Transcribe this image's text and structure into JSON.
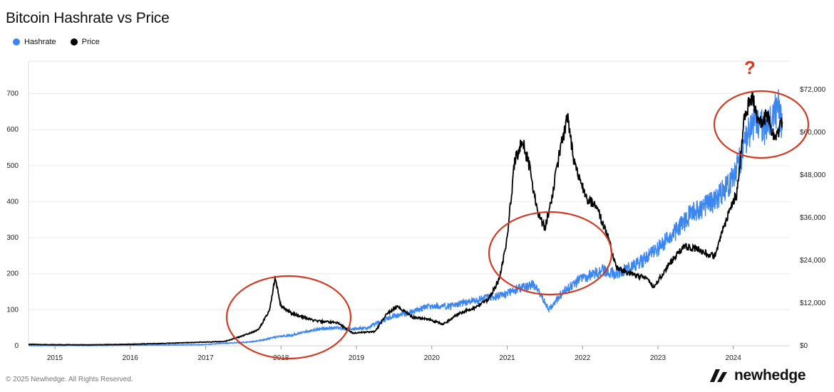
{
  "title": "Bitcoin Hashrate vs Price",
  "legend": [
    {
      "label": "Hashrate",
      "color": "#3b86f0"
    },
    {
      "label": "Price",
      "color": "#000000"
    }
  ],
  "footer": "© 2025 Newhedge. All Rights Reserved.",
  "brand": "newhedge",
  "annotation": "?",
  "highlight_color": "#d23a24",
  "chart_data": {
    "type": "line",
    "x_ticks": [
      "2015",
      "2016",
      "2017",
      "2018",
      "2019",
      "2020",
      "2021",
      "2022",
      "2023",
      "2024"
    ],
    "y_left_ticks": [
      "0",
      "100",
      "200",
      "300",
      "400",
      "500",
      "600",
      "700"
    ],
    "y_right_ticks": [
      "$0",
      "$12,000",
      "$24,000",
      "$36,000",
      "$48,000",
      "$60,000",
      "$72,000"
    ],
    "x_range": [
      2014.7,
      2024.8
    ],
    "y_left_range": [
      0,
      790
    ],
    "y_right_range": [
      0,
      80000
    ],
    "grid": true,
    "legend_position": "top-left",
    "series": [
      {
        "name": "Hashrate",
        "axis": "left",
        "color": "#3b86f0",
        "x": [
          2014.7,
          2015.0,
          2015.5,
          2016.0,
          2016.5,
          2017.0,
          2017.3,
          2017.6,
          2017.8,
          2018.0,
          2018.2,
          2018.5,
          2018.8,
          2018.95,
          2019.2,
          2019.5,
          2019.8,
          2020.0,
          2020.3,
          2020.5,
          2020.8,
          2021.0,
          2021.2,
          2021.4,
          2021.5,
          2021.6,
          2021.8,
          2022.0,
          2022.3,
          2022.5,
          2022.8,
          2023.0,
          2023.3,
          2023.5,
          2023.8,
          2024.0,
          2024.15,
          2024.3,
          2024.5,
          2024.65,
          2024.7
        ],
        "y": [
          0.3,
          0.4,
          0.5,
          1.5,
          2,
          3,
          7,
          10,
          15,
          25,
          30,
          45,
          50,
          45,
          50,
          80,
          95,
          110,
          110,
          120,
          135,
          140,
          160,
          170,
          140,
          100,
          150,
          180,
          210,
          200,
          230,
          260,
          320,
          370,
          400,
          450,
          520,
          620,
          600,
          670,
          600
        ]
      },
      {
        "name": "Price",
        "axis": "right",
        "color": "#000000",
        "x": [
          2014.7,
          2015.0,
          2015.5,
          2016.0,
          2016.5,
          2017.0,
          2017.3,
          2017.5,
          2017.75,
          2017.9,
          2017.97,
          2018.05,
          2018.2,
          2018.5,
          2018.8,
          2018.9,
          2019.0,
          2019.3,
          2019.45,
          2019.6,
          2019.8,
          2020.0,
          2020.2,
          2020.4,
          2020.6,
          2020.8,
          2020.95,
          2021.05,
          2021.15,
          2021.25,
          2021.35,
          2021.45,
          2021.55,
          2021.65,
          2021.75,
          2021.85,
          2021.95,
          2022.1,
          2022.25,
          2022.4,
          2022.5,
          2022.7,
          2022.9,
          2023.0,
          2023.2,
          2023.4,
          2023.6,
          2023.8,
          2023.95,
          2024.1,
          2024.2,
          2024.3,
          2024.4,
          2024.5,
          2024.6,
          2024.7
        ],
        "y": [
          400,
          300,
          250,
          400,
          650,
          1000,
          1200,
          2500,
          4500,
          10000,
          19000,
          11000,
          9000,
          7000,
          6500,
          5000,
          3600,
          4000,
          9000,
          11000,
          8000,
          7500,
          6000,
          9000,
          10500,
          13000,
          19000,
          30000,
          52000,
          58000,
          50000,
          38000,
          33000,
          42000,
          55000,
          64000,
          50000,
          42000,
          38000,
          30000,
          22000,
          20000,
          19000,
          16500,
          23000,
          28000,
          27000,
          25000,
          35000,
          43000,
          65000,
          70000,
          62000,
          65000,
          58000,
          63000
        ]
      }
    ]
  }
}
